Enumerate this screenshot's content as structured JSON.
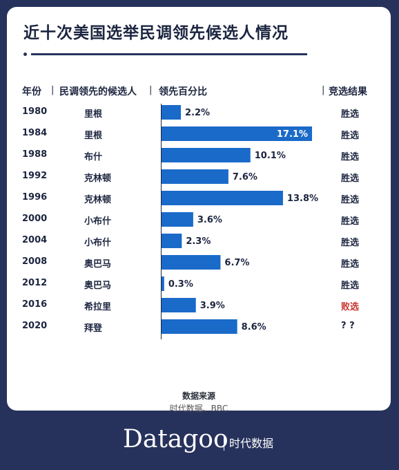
{
  "title": "近十次美国选举民调领先候选人情况",
  "headers": {
    "year": "年份",
    "candidate": "民调领先的候选人",
    "percent": "领先百分比",
    "result": "竞选结果",
    "separator": "|"
  },
  "rows": [
    {
      "year": "1980",
      "candidate": "里根",
      "value_label": "2.2%",
      "result": "胜选"
    },
    {
      "year": "1984",
      "candidate": "里根",
      "value_label": "17.1%",
      "result": "胜选"
    },
    {
      "year": "1988",
      "candidate": "布什",
      "value_label": "10.1%",
      "result": "胜选"
    },
    {
      "year": "1992",
      "candidate": "克林顿",
      "value_label": "7.6%",
      "result": "胜选"
    },
    {
      "year": "1996",
      "candidate": "克林顿",
      "value_label": "13.8%",
      "result": "胜选"
    },
    {
      "year": "2000",
      "candidate": "小布什",
      "value_label": "3.6%",
      "result": "胜选"
    },
    {
      "year": "2004",
      "candidate": "小布什",
      "value_label": "2.3%",
      "result": "胜选"
    },
    {
      "year": "2008",
      "candidate": "奥巴马",
      "value_label": "6.7%",
      "result": "胜选"
    },
    {
      "year": "2012",
      "candidate": "奥巴马",
      "value_label": "0.3%",
      "result": "胜选"
    },
    {
      "year": "2016",
      "candidate": "希拉里",
      "value_label": "3.9%",
      "result": "败选"
    },
    {
      "year": "2020",
      "candidate": "拜登",
      "value_label": "8.6%",
      "result": "? ?"
    }
  ],
  "chart_data": {
    "type": "bar",
    "orientation": "horizontal",
    "categories": [
      "1980",
      "1984",
      "1988",
      "1992",
      "1996",
      "2000",
      "2004",
      "2008",
      "2012",
      "2016",
      "2020"
    ],
    "values": [
      2.2,
      17.1,
      10.1,
      7.6,
      13.8,
      3.6,
      2.3,
      6.7,
      0.3,
      3.9,
      8.6
    ],
    "unit": "%",
    "xlim": [
      0,
      17.1
    ],
    "grid": false,
    "bar_color": "#1a6ac9",
    "highlight_label_color": "#ffffff"
  },
  "colors": {
    "background": "#27325c",
    "bar": "#1a6ac9",
    "text": "#1c2540",
    "loss": "#c8362f"
  },
  "source": {
    "label": "数据来源",
    "value": "时代数据、BBC"
  },
  "brand": {
    "name": "Datagoo",
    "sub": "时代数据"
  }
}
